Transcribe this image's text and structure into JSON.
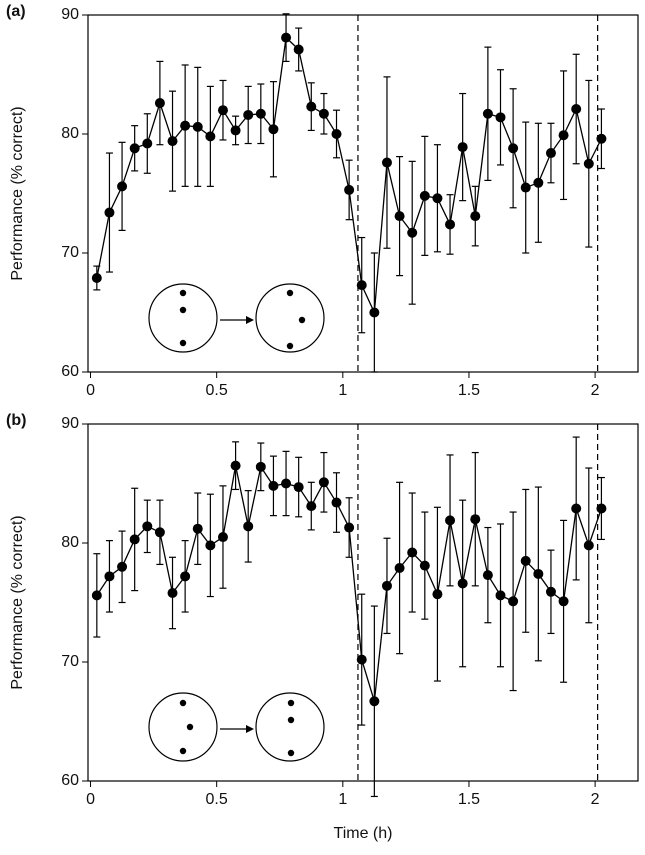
{
  "chart_data": [
    {
      "type": "line",
      "panel_label": "(a)",
      "ylabel": "Performance (% correct)",
      "x": [
        0.025,
        0.075,
        0.125,
        0.175,
        0.225,
        0.275,
        0.325,
        0.375,
        0.425,
        0.475,
        0.525,
        0.575,
        0.625,
        0.675,
        0.725,
        0.775,
        0.825,
        0.875,
        0.925,
        0.975,
        1.025,
        1.075,
        1.125,
        1.175,
        1.225,
        1.275,
        1.325,
        1.375,
        1.425,
        1.475,
        1.525,
        1.575,
        1.625,
        1.675,
        1.725,
        1.775,
        1.825,
        1.875,
        1.925,
        1.975,
        2.025
      ],
      "values": [
        67.9,
        73.4,
        75.6,
        78.8,
        79.2,
        82.6,
        79.4,
        80.7,
        80.6,
        79.8,
        82.0,
        80.3,
        81.6,
        81.7,
        80.4,
        88.1,
        87.1,
        82.3,
        81.7,
        80.0,
        75.3,
        67.3,
        65.0,
        77.6,
        73.1,
        71.7,
        74.8,
        74.6,
        72.4,
        78.9,
        73.1,
        81.7,
        81.4,
        78.8,
        75.5,
        75.9,
        78.4,
        79.9,
        82.1,
        77.5,
        79.6
      ],
      "errors": [
        1.0,
        5.0,
        3.7,
        1.9,
        2.5,
        3.5,
        4.2,
        5.1,
        5.0,
        4.2,
        2.5,
        1.2,
        2.4,
        2.5,
        4.0,
        2.0,
        1.8,
        2.0,
        1.7,
        2.0,
        2.5,
        4.0,
        5.0,
        7.2,
        5.0,
        6.0,
        5.0,
        4.5,
        2.5,
        4.5,
        2.5,
        5.6,
        4.0,
        5.0,
        5.5,
        5.0,
        2.5,
        5.4,
        4.6,
        7.0,
        2.5
      ],
      "color": "#000000",
      "xlim": [
        -0.01,
        2.17
      ],
      "ylim": [
        60,
        90
      ],
      "xticks": [
        0,
        0.5,
        1,
        1.5,
        2
      ],
      "yticks": [
        60,
        70,
        80,
        90
      ],
      "vlines": [
        1.06,
        2.01
      ]
    },
    {
      "type": "line",
      "panel_label": "(b)",
      "ylabel": "Performance (% correct)",
      "xlabel": "Time (h)",
      "x": [
        0.025,
        0.075,
        0.125,
        0.175,
        0.225,
        0.275,
        0.325,
        0.375,
        0.425,
        0.475,
        0.525,
        0.575,
        0.625,
        0.675,
        0.725,
        0.775,
        0.825,
        0.875,
        0.925,
        0.975,
        1.025,
        1.075,
        1.125,
        1.175,
        1.225,
        1.275,
        1.325,
        1.375,
        1.425,
        1.475,
        1.525,
        1.575,
        1.625,
        1.675,
        1.725,
        1.775,
        1.825,
        1.875,
        1.925,
        1.975,
        2.025
      ],
      "values": [
        75.6,
        77.2,
        78.0,
        80.3,
        81.4,
        80.9,
        75.8,
        77.2,
        81.2,
        79.8,
        80.5,
        86.5,
        81.4,
        86.4,
        84.8,
        85.0,
        84.7,
        83.1,
        85.1,
        83.4,
        81.3,
        70.2,
        66.7,
        76.4,
        77.9,
        79.2,
        78.1,
        75.7,
        81.9,
        76.6,
        82.0,
        77.3,
        75.6,
        75.1,
        78.5,
        77.4,
        75.9,
        75.1,
        82.9,
        79.8,
        82.9
      ],
      "errors": [
        3.5,
        3.0,
        3.0,
        4.3,
        2.2,
        2.7,
        3.0,
        3.0,
        3.0,
        4.3,
        4.3,
        2.0,
        3.0,
        2.0,
        2.5,
        2.7,
        2.5,
        2.0,
        2.5,
        2.5,
        2.5,
        5.5,
        8.0,
        4.0,
        7.2,
        5.0,
        4.5,
        7.3,
        5.5,
        7.0,
        5.6,
        4.0,
        6.0,
        7.5,
        6.0,
        7.3,
        3.5,
        6.8,
        6.0,
        6.5,
        2.6
      ],
      "color": "#000000",
      "xlim": [
        -0.01,
        2.17
      ],
      "ylim": [
        60,
        90
      ],
      "xticks": [
        0,
        0.5,
        1,
        1.5,
        2
      ],
      "yticks": [
        60,
        70,
        80,
        90
      ],
      "vlines": [
        1.06,
        2.01
      ]
    }
  ]
}
